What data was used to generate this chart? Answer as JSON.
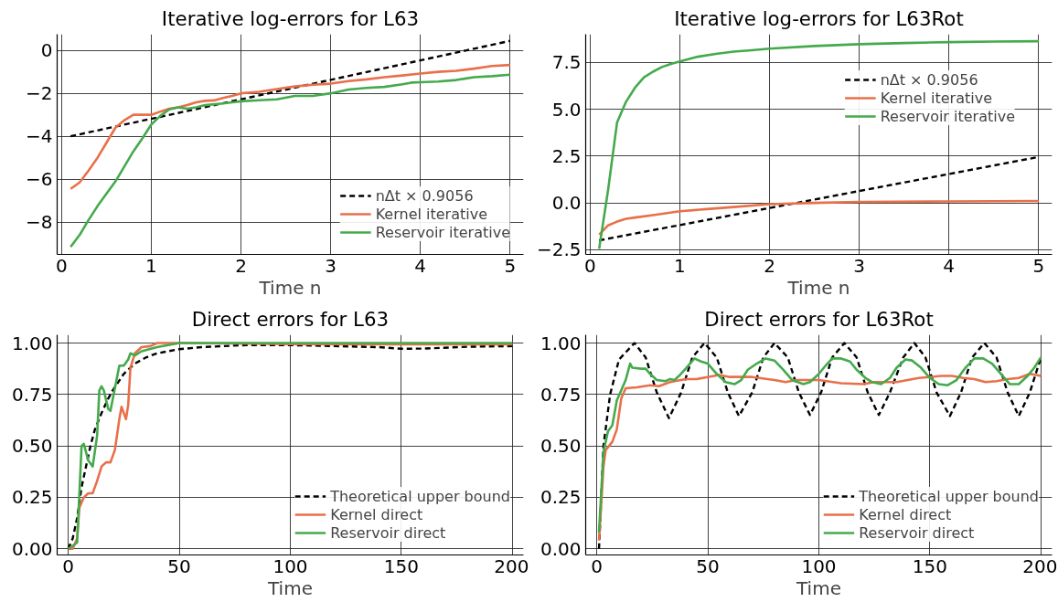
{
  "chart_data": [
    {
      "type": "line",
      "title": "Iterative log-errors for L63",
      "xlabel": "Time n",
      "xlim": [
        -0.05,
        5.15
      ],
      "ylim": [
        -9.5,
        0.75
      ],
      "xticks": [
        0,
        1,
        2,
        3,
        4,
        5
      ],
      "yticks": [
        {
          "value": -8,
          "label": "−8"
        },
        {
          "value": -6,
          "label": "−6"
        },
        {
          "value": -4,
          "label": "−4"
        },
        {
          "value": -2,
          "label": "−2"
        },
        0
      ],
      "grid": true,
      "legend": "bottom right",
      "series": [
        {
          "name": "nΔt × 0.9056",
          "color": "#000000",
          "line_style": "dashed",
          "x": [
            0.1,
            5.0
          ],
          "values": [
            -4.0,
            0.44
          ]
        },
        {
          "name": "Kernel iterative",
          "color": "#e8704a",
          "line_style": "solid",
          "x": [
            0.1,
            0.2,
            0.3,
            0.4,
            0.5,
            0.6,
            0.7,
            0.8,
            0.9,
            1.0,
            1.1,
            1.2,
            1.3,
            1.4,
            1.5,
            1.6,
            1.7,
            1.8,
            1.9,
            2.0,
            2.2,
            2.4,
            2.6,
            2.8,
            3.0,
            3.2,
            3.4,
            3.6,
            3.8,
            4.0,
            4.2,
            4.4,
            4.6,
            4.8,
            5.0
          ],
          "values": [
            -6.45,
            -6.15,
            -5.6,
            -5.0,
            -4.3,
            -3.6,
            -3.25,
            -3.0,
            -3.0,
            -3.0,
            -2.85,
            -2.72,
            -2.65,
            -2.55,
            -2.42,
            -2.35,
            -2.33,
            -2.22,
            -2.12,
            -2.0,
            -1.93,
            -1.8,
            -1.68,
            -1.6,
            -1.55,
            -1.43,
            -1.35,
            -1.25,
            -1.17,
            -1.08,
            -1.0,
            -0.95,
            -0.85,
            -0.73,
            -0.68
          ]
        },
        {
          "name": "Reservoir iterative",
          "color": "#44aa4c",
          "line_style": "solid",
          "x": [
            0.1,
            0.2,
            0.3,
            0.4,
            0.6,
            0.7,
            0.8,
            0.9,
            1.0,
            1.1,
            1.2,
            1.3,
            1.4,
            1.5,
            1.6,
            1.8,
            2.0,
            2.2,
            2.4,
            2.6,
            2.8,
            3.0,
            3.2,
            3.4,
            3.6,
            3.8,
            3.9,
            4.0,
            4.2,
            4.4,
            4.6,
            4.8,
            5.0
          ],
          "values": [
            -9.15,
            -8.6,
            -7.9,
            -7.25,
            -6.1,
            -5.4,
            -4.7,
            -4.1,
            -3.45,
            -3.05,
            -2.75,
            -2.65,
            -2.72,
            -2.65,
            -2.55,
            -2.47,
            -2.37,
            -2.32,
            -2.28,
            -2.12,
            -2.12,
            -2.0,
            -1.82,
            -1.75,
            -1.7,
            -1.58,
            -1.5,
            -1.48,
            -1.45,
            -1.38,
            -1.25,
            -1.2,
            -1.13
          ]
        }
      ]
    },
    {
      "type": "line",
      "title": "Iterative log-errors for L63Rot",
      "xlabel": "Time n",
      "xlim": [
        -0.05,
        5.15
      ],
      "ylim": [
        -2.75,
        9.0
      ],
      "xticks": [
        0,
        1,
        2,
        3,
        4,
        5
      ],
      "yticks": [
        {
          "value": -2.5,
          "label": "−2.5"
        },
        {
          "value": 0,
          "label": "0.0"
        },
        {
          "value": 2.5,
          "label": "2.5"
        },
        {
          "value": 5,
          "label": "5.0"
        },
        {
          "value": 7.5,
          "label": "7.5"
        }
      ],
      "grid": true,
      "legend": "top right",
      "series": [
        {
          "name": "nΔt × 0.9056",
          "color": "#000000",
          "line_style": "dashed",
          "x": [
            0.1,
            5.0
          ],
          "values": [
            -2.0,
            2.45
          ]
        },
        {
          "name": "Kernel iterative",
          "color": "#e8704a",
          "line_style": "solid",
          "x": [
            0.1,
            0.2,
            0.3,
            0.4,
            0.5,
            0.7,
            1.0,
            1.3,
            1.6,
            2.0,
            2.5,
            3.0,
            4.0,
            5.0
          ],
          "values": [
            -1.7,
            -1.2,
            -1.0,
            -0.85,
            -0.78,
            -0.65,
            -0.45,
            -0.33,
            -0.22,
            -0.07,
            0.0,
            0.05,
            0.08,
            0.1
          ]
        },
        {
          "name": "Reservoir iterative",
          "color": "#44aa4c",
          "line_style": "solid",
          "x": [
            0.1,
            0.2,
            0.3,
            0.4,
            0.5,
            0.6,
            0.7,
            0.8,
            0.9,
            1.0,
            1.2,
            1.4,
            1.6,
            1.8,
            2.0,
            2.5,
            3.0,
            3.5,
            4.0,
            4.5,
            5.0
          ],
          "values": [
            -2.45,
            0.7,
            4.3,
            5.4,
            6.15,
            6.7,
            7.0,
            7.25,
            7.42,
            7.55,
            7.8,
            7.95,
            8.07,
            8.15,
            8.23,
            8.37,
            8.47,
            8.53,
            8.58,
            8.61,
            8.63
          ]
        }
      ]
    },
    {
      "type": "line",
      "title": "Direct errors for L63",
      "xlabel": "Time",
      "xlim": [
        -5,
        205
      ],
      "ylim": [
        -0.03,
        1.04
      ],
      "xticks": [
        0,
        50,
        100,
        150,
        200
      ],
      "yticks": [
        {
          "value": 0,
          "label": "0.00"
        },
        {
          "value": 0.25,
          "label": "0.25"
        },
        {
          "value": 0.5,
          "label": "0.50"
        },
        {
          "value": 0.75,
          "label": "0.75"
        },
        {
          "value": 1,
          "label": "1.00"
        }
      ],
      "grid": true,
      "legend": "bottom right",
      "series": [
        {
          "name": "Theoretical upper bound",
          "color": "#000000",
          "line_style": "dashed",
          "x": [
            0,
            2,
            4,
            6,
            8,
            10,
            12,
            15,
            18,
            20,
            25,
            30,
            35,
            40,
            50,
            60,
            80,
            100,
            120,
            140,
            150,
            160,
            180,
            200
          ],
          "values": [
            0,
            0.05,
            0.15,
            0.3,
            0.4,
            0.5,
            0.58,
            0.66,
            0.73,
            0.77,
            0.85,
            0.9,
            0.93,
            0.95,
            0.97,
            0.98,
            0.99,
            0.99,
            0.985,
            0.98,
            0.972,
            0.973,
            0.982,
            0.985
          ]
        },
        {
          "name": "Kernel direct",
          "color": "#e8704a",
          "line_style": "solid",
          "x": [
            0,
            2,
            4,
            5,
            7,
            9,
            11,
            13,
            15,
            17,
            19,
            21,
            23,
            24,
            25,
            26,
            27,
            28,
            30,
            33,
            37,
            40,
            50,
            100,
            150,
            200
          ],
          "values": [
            0,
            0.0,
            0.05,
            0.2,
            0.25,
            0.27,
            0.27,
            0.33,
            0.4,
            0.42,
            0.42,
            0.48,
            0.63,
            0.69,
            0.66,
            0.63,
            0.7,
            0.88,
            0.95,
            0.98,
            0.985,
            1.0,
            1.0,
            0.995,
            0.994,
            0.994
          ]
        },
        {
          "name": "Reservoir direct",
          "color": "#44aa4c",
          "line_style": "solid",
          "x": [
            0,
            4,
            6,
            7,
            9,
            11,
            13,
            14,
            15,
            16,
            18,
            19,
            21,
            23,
            25,
            27,
            28,
            30,
            33,
            40,
            50,
            80,
            100,
            170,
            200
          ],
          "values": [
            0,
            0.03,
            0.5,
            0.51,
            0.43,
            0.4,
            0.55,
            0.77,
            0.79,
            0.77,
            0.68,
            0.67,
            0.78,
            0.89,
            0.89,
            0.92,
            0.95,
            0.94,
            0.96,
            0.98,
            1.0,
            1.0,
            1.0,
            1.0,
            1.0
          ]
        }
      ]
    },
    {
      "type": "line",
      "title": "Direct errors for L63Rot",
      "xlabel": "Time",
      "xlim": [
        -5,
        205
      ],
      "ylim": [
        -0.03,
        1.04
      ],
      "xticks": [
        0,
        50,
        100,
        150,
        200
      ],
      "yticks": [
        {
          "value": 0,
          "label": "0.00"
        },
        {
          "value": 0.25,
          "label": "0.25"
        },
        {
          "value": 0.5,
          "label": "0.50"
        },
        {
          "value": 0.75,
          "label": "0.75"
        },
        {
          "value": 1,
          "label": "1.00"
        }
      ],
      "grid": true,
      "legend": "bottom right",
      "series": [
        {
          "name": "Theoretical upper bound",
          "color": "#000000",
          "line_style": "dashed",
          "x": [
            1,
            3,
            6,
            10,
            17,
            22,
            27,
            32.5,
            38,
            43,
            48.5,
            54,
            59,
            64,
            70,
            75,
            80,
            86,
            91,
            96,
            101,
            106,
            111.5,
            117,
            122,
            127,
            132,
            138,
            143,
            148,
            153,
            159,
            164,
            169,
            174.5,
            180,
            185,
            190,
            195,
            200
          ],
          "values": [
            0,
            0.5,
            0.75,
            0.92,
            1.0,
            0.93,
            0.76,
            0.635,
            0.76,
            0.93,
            1.0,
            0.93,
            0.76,
            0.645,
            0.76,
            0.93,
            1.0,
            0.93,
            0.76,
            0.65,
            0.76,
            0.93,
            1.0,
            0.93,
            0.76,
            0.65,
            0.76,
            0.93,
            1.0,
            0.93,
            0.76,
            0.645,
            0.76,
            0.93,
            1.0,
            0.93,
            0.76,
            0.645,
            0.76,
            0.93
          ]
        },
        {
          "name": "Kernel direct",
          "color": "#e8704a",
          "line_style": "solid",
          "x": [
            1,
            3,
            4,
            7,
            9,
            11,
            13,
            18,
            24,
            28,
            33,
            40,
            45,
            50,
            55,
            60,
            70,
            80,
            85,
            90,
            100,
            110,
            120,
            125,
            130,
            135,
            140,
            145,
            150,
            155,
            160,
            165,
            170,
            175,
            180,
            185,
            190,
            195,
            200
          ],
          "values": [
            0.04,
            0.4,
            0.48,
            0.52,
            0.58,
            0.73,
            0.78,
            0.785,
            0.795,
            0.79,
            0.81,
            0.825,
            0.825,
            0.835,
            0.845,
            0.835,
            0.835,
            0.82,
            0.81,
            0.82,
            0.82,
            0.805,
            0.8,
            0.81,
            0.81,
            0.81,
            0.82,
            0.83,
            0.835,
            0.84,
            0.84,
            0.83,
            0.825,
            0.81,
            0.815,
            0.825,
            0.83,
            0.85,
            0.84
          ]
        },
        {
          "name": "Reservoir direct",
          "color": "#44aa4c",
          "line_style": "solid",
          "x": [
            1,
            3,
            5,
            7,
            9,
            11,
            13,
            15,
            16,
            20,
            22,
            24,
            27,
            31,
            33,
            35,
            37,
            40,
            44,
            47,
            50,
            54,
            58,
            62,
            65,
            68,
            72,
            76,
            80,
            84,
            88,
            93,
            96,
            100,
            103,
            106,
            110,
            114,
            117,
            121,
            124,
            128,
            132,
            135,
            139,
            142,
            146,
            150,
            154,
            158,
            162,
            166,
            170,
            174,
            178,
            182,
            186,
            190,
            194,
            197,
            200
          ],
          "values": [
            0.08,
            0.47,
            0.57,
            0.6,
            0.72,
            0.77,
            0.82,
            0.9,
            0.88,
            0.875,
            0.875,
            0.85,
            0.82,
            0.815,
            0.825,
            0.82,
            0.84,
            0.875,
            0.925,
            0.91,
            0.9,
            0.85,
            0.81,
            0.8,
            0.82,
            0.87,
            0.9,
            0.925,
            0.915,
            0.87,
            0.82,
            0.8,
            0.81,
            0.85,
            0.89,
            0.925,
            0.925,
            0.91,
            0.87,
            0.83,
            0.81,
            0.8,
            0.83,
            0.88,
            0.92,
            0.915,
            0.88,
            0.83,
            0.8,
            0.795,
            0.82,
            0.88,
            0.925,
            0.925,
            0.9,
            0.85,
            0.8,
            0.8,
            0.84,
            0.88,
            0.93
          ]
        }
      ]
    }
  ]
}
